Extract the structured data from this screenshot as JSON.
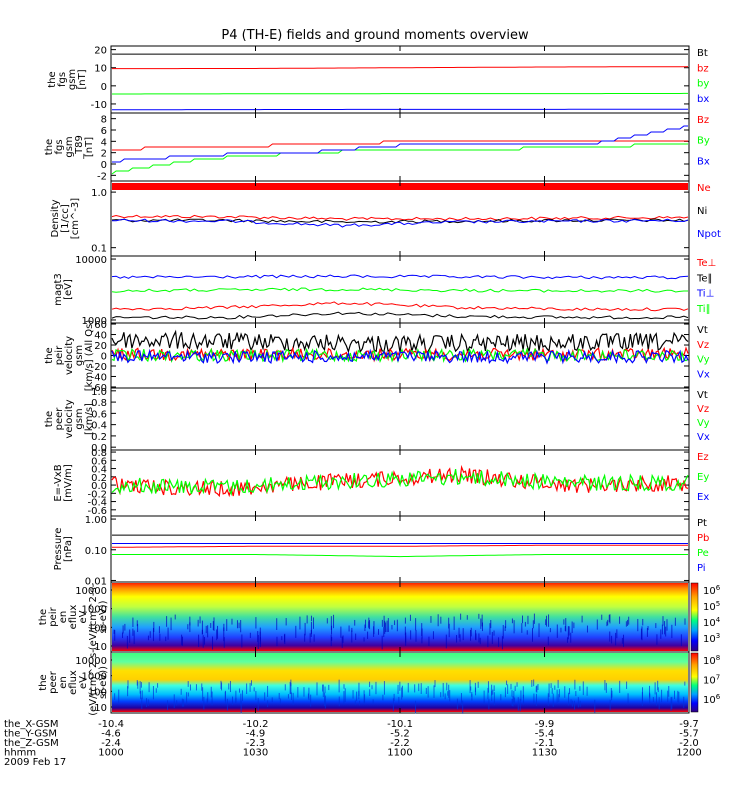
{
  "title": "P4 (TH-E) fields and ground moments overview",
  "colors": {
    "black": "#000000",
    "red": "#ff0000",
    "green": "#00ff00",
    "blue": "#0000ff"
  },
  "chart_data": [
    {
      "type": "line",
      "ylabel": [
        "the",
        "fgs",
        "gsm",
        "[nT]"
      ],
      "yticks": [
        "20",
        "10",
        "0",
        "-10"
      ],
      "series": [
        {
          "name": "Bt",
          "color": "#000000",
          "y": [
            17.5,
            17.5,
            17.5,
            17.5,
            17.5
          ]
        },
        {
          "name": "bz",
          "color": "#ff0000",
          "y": [
            9.5,
            9.6,
            10,
            10.4,
            10.6
          ]
        },
        {
          "name": "by",
          "color": "#00ff00",
          "y": [
            -4.5,
            -4.4,
            -4.3,
            -4.3,
            -4.2
          ]
        },
        {
          "name": "bx",
          "color": "#0000ff",
          "y": [
            -13.2,
            -13.1,
            -13.0,
            -13.0,
            -12.9
          ]
        }
      ]
    },
    {
      "type": "line",
      "ylabel": [
        "the",
        "fgs",
        "gsm",
        "_T89",
        "[nT]"
      ],
      "yticks": [
        "8",
        "6",
        "4",
        "2",
        "0",
        "-2"
      ],
      "series": [
        {
          "name": "Bz",
          "color": "#ff0000",
          "y": [
            2.6,
            3.0,
            3.4,
            3.9,
            4.0,
            4.1,
            3.8
          ]
        },
        {
          "name": "By",
          "color": "#00ff00",
          "y": [
            -1.5,
            1.0,
            1.9,
            2.7,
            2.6,
            3.1,
            3.5
          ]
        },
        {
          "name": "Bx",
          "color": "#0000ff",
          "y": [
            0.5,
            1.6,
            2.0,
            3.3,
            3.5,
            3.6,
            6.6
          ]
        }
      ]
    },
    {
      "type": "line",
      "ylabel": [
        "Density",
        "[1/cc]",
        "[cm^-3]"
      ],
      "yticks": [
        "1.0",
        "0.1"
      ],
      "series": [
        {
          "name": "Ne",
          "color": "#ff0000",
          "y": [
            0.37,
            0.36,
            0.33,
            0.33,
            0.34,
            0.35
          ]
        },
        {
          "name": "Ni",
          "color": "#000000",
          "y": [
            0.31,
            0.31,
            0.29,
            0.3,
            0.31,
            0.31
          ]
        },
        {
          "name": "Npot",
          "color": "#0000ff",
          "y": [
            0.31,
            0.3,
            0.25,
            0.29,
            0.3,
            0.31
          ]
        }
      ]
    },
    {
      "type": "line",
      "ylabel": [
        "magt3",
        "[eV]"
      ],
      "yticks": [
        "10000",
        "1000"
      ],
      "series": [
        {
          "name": "Te⊥",
          "color": "#ff0000",
          "y": [
            1500,
            1600,
            1900,
            1600,
            1500,
            1500
          ]
        },
        {
          "name": "Te∥",
          "color": "#000000",
          "y": [
            1100,
            1100,
            1300,
            1150,
            1100,
            1100
          ]
        },
        {
          "name": "Ti⊥",
          "color": "#0000ff",
          "y": [
            5000,
            5100,
            5200,
            5100,
            5000,
            5000
          ]
        },
        {
          "name": "Ti∥",
          "color": "#00ff00",
          "y": [
            3000,
            3100,
            3200,
            3050,
            3000,
            3000
          ]
        }
      ]
    },
    {
      "type": "line",
      "ylabel": [
        "the",
        "peir",
        "velocity",
        "gsm",
        "[km/s] (All Qs)"
      ],
      "yticks": [
        "60",
        "40",
        "20",
        "0",
        "-20",
        "-40",
        "-60"
      ],
      "series": [
        {
          "name": "Vt",
          "color": "#000000",
          "y": [
            30,
            26,
            22,
            24,
            26
          ]
        },
        {
          "name": "Vz",
          "color": "#ff0000",
          "y": [
            3,
            2,
            2,
            2,
            3
          ]
        },
        {
          "name": "Vy",
          "color": "#00ff00",
          "y": [
            1,
            0,
            0,
            1,
            0
          ]
        },
        {
          "name": "Vx",
          "color": "#0000ff",
          "y": [
            -2,
            -3,
            -2,
            -3,
            -2
          ]
        }
      ]
    },
    {
      "type": "line",
      "ylabel": [
        "the",
        "peer",
        "velocity",
        "gsm",
        "[km/s]"
      ],
      "yticks": [
        "1.0",
        "0.8",
        "0.6",
        "0.4",
        "0.2",
        "0.0"
      ],
      "series": [
        {
          "name": "Vt",
          "color": "#000000",
          "y": []
        },
        {
          "name": "Vz",
          "color": "#ff0000",
          "y": []
        },
        {
          "name": "Vy",
          "color": "#00ff00",
          "y": []
        },
        {
          "name": "Vx",
          "color": "#0000ff",
          "y": []
        }
      ]
    },
    {
      "type": "line",
      "ylabel": [
        "E=-VxB",
        "[mV/m]"
      ],
      "yticks": [
        "0.8",
        "0.6",
        "0.4",
        "0.2",
        "0.0",
        "-0.2",
        "-0.4",
        "-0.6"
      ],
      "series": [
        {
          "name": "Ez",
          "color": "#ff0000",
          "y": [
            0,
            -0.1,
            0.1,
            0.25,
            0.0,
            0.05
          ]
        },
        {
          "name": "Ey",
          "color": "#00ff00",
          "y": [
            0,
            -0.05,
            0.1,
            0.2,
            0.05,
            0.05
          ]
        },
        {
          "name": "Ex",
          "color": "#0000ff",
          "y": []
        }
      ]
    },
    {
      "type": "line",
      "ylabel": [
        "Pressure",
        "[nPa]"
      ],
      "yticks": [
        "1.00",
        "0.10",
        "0.01"
      ],
      "series": [
        {
          "name": "Pt",
          "color": "#000000",
          "y": [
            0.3,
            0.3,
            0.3,
            0.3,
            0.3
          ]
        },
        {
          "name": "Pb",
          "color": "#ff0000",
          "y": [
            0.12,
            0.13,
            0.13,
            0.14,
            0.14
          ]
        },
        {
          "name": "Pe",
          "color": "#00ff00",
          "y": [
            0.07,
            0.07,
            0.06,
            0.07,
            0.07
          ]
        },
        {
          "name": "Pi",
          "color": "#0000ff",
          "y": [
            0.16,
            0.16,
            0.16,
            0.16,
            0.16
          ]
        }
      ]
    },
    {
      "type": "heatmap",
      "ylabel": [
        "the",
        "peir",
        "en",
        "eflux",
        "eV",
        "(eV/(cm^2-s-",
        "sr-eV))"
      ],
      "yticks": [
        "10000",
        "1000",
        "100",
        "10"
      ],
      "colorbar_ticks": [
        "10^6",
        "10^5",
        "10^4",
        "10^3"
      ]
    },
    {
      "type": "heatmap",
      "ylabel": [
        "the",
        "peer",
        "en",
        "eflux",
        "eV",
        "(eV/(cm^2-s-",
        "sr-eV))"
      ],
      "yticks": [
        "10000",
        "1000",
        "100",
        "10"
      ],
      "colorbar_ticks": [
        "10^8",
        "10^7",
        "10^6"
      ]
    }
  ],
  "xaxis": {
    "rows": [
      {
        "label": "the_X-GSM",
        "values": [
          "-10.4",
          "-10.2",
          "-10.1",
          "-9.9",
          "-9.7"
        ]
      },
      {
        "label": "the_Y-GSM",
        "values": [
          "-4.6",
          "-4.9",
          "-5.2",
          "-5.4",
          "-5.7"
        ]
      },
      {
        "label": "the_Z-GSM",
        "values": [
          "-2.4",
          "-2.3",
          "-2.2",
          "-2.1",
          "-2.0"
        ]
      },
      {
        "label": "hhmm",
        "values": [
          "1000",
          "1030",
          "1100",
          "1130",
          "1200"
        ]
      }
    ],
    "date": "2009 Feb 17"
  }
}
